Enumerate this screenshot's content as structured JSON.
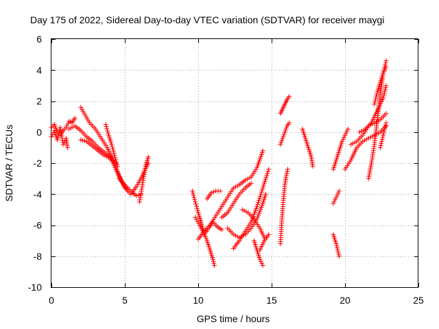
{
  "chart_data": {
    "type": "scatter",
    "title": "Day 175 of 2022, Sidereal Day-to-day VTEC variation (SDTVAR) for receiver maygi",
    "xlabel": "GPS time / hours",
    "ylabel": "SDTVAR / TECUs",
    "xlim": [
      0,
      25
    ],
    "ylim": [
      -10,
      6
    ],
    "xticks": [
      0,
      5,
      10,
      15,
      20,
      25
    ],
    "yticks": [
      6,
      4,
      2,
      0,
      -2,
      -4,
      -6,
      -8,
      -10
    ],
    "grid": true,
    "marker": "+",
    "color": "#ff0000",
    "series": [
      {
        "name": "s1",
        "x": [
          0.0,
          0.2,
          0.4,
          0.6,
          0.8,
          1.0,
          1.1
        ],
        "y": [
          -0.3,
          0.1,
          -0.5,
          0.3,
          -0.8,
          -0.4,
          -1.0
        ]
      },
      {
        "name": "s2",
        "x": [
          0.0,
          0.2,
          0.4,
          0.6,
          0.8,
          1.0,
          1.2,
          1.4,
          1.6
        ],
        "y": [
          0.3,
          0.5,
          0.0,
          -0.2,
          0.1,
          0.3,
          0.7,
          0.6,
          0.9
        ]
      },
      {
        "name": "s3",
        "x": [
          1.2,
          1.6,
          2.0,
          2.4,
          2.8,
          3.2,
          3.6,
          4.0,
          4.4,
          4.8,
          5.2
        ],
        "y": [
          0.2,
          0.4,
          0.1,
          -0.3,
          -0.6,
          -1.0,
          -1.3,
          -1.6,
          -2.4,
          -3.2,
          -3.8
        ]
      },
      {
        "name": "s4",
        "x": [
          2.0,
          2.3,
          2.6,
          3.0,
          3.4,
          3.8,
          4.2,
          4.6,
          5.0,
          5.4,
          5.8,
          6.2,
          6.6
        ],
        "y": [
          1.6,
          1.1,
          0.6,
          0.2,
          -0.4,
          -1.0,
          -1.8,
          -2.8,
          -3.6,
          -4.0,
          -3.5,
          -2.8,
          -2.0
        ]
      },
      {
        "name": "s5",
        "x": [
          2.0,
          2.4,
          2.8,
          3.2,
          3.6,
          4.0,
          4.4
        ],
        "y": [
          -0.5,
          -0.6,
          -0.9,
          -1.2,
          -1.5,
          -1.7,
          -2.0
        ]
      },
      {
        "name": "s6",
        "x": [
          3.7,
          3.9,
          4.1,
          4.3,
          4.5
        ],
        "y": [
          0.5,
          -0.2,
          -0.8,
          -1.5,
          -2.2
        ]
      },
      {
        "name": "s7",
        "x": [
          4.6,
          4.9,
          5.2,
          5.5,
          5.8,
          6.1
        ],
        "y": [
          -3.0,
          -3.3,
          -3.6,
          -3.9,
          -4.1,
          -4.0
        ]
      },
      {
        "name": "s8",
        "x": [
          6.0,
          6.2,
          6.4,
          6.6
        ],
        "y": [
          -4.5,
          -3.4,
          -2.2,
          -1.6
        ]
      },
      {
        "name": "s9",
        "x": [
          9.6,
          9.8,
          10.0,
          10.2,
          10.4,
          10.6,
          10.8,
          11.0,
          11.1
        ],
        "y": [
          -3.8,
          -4.5,
          -5.2,
          -5.8,
          -6.5,
          -7.0,
          -7.6,
          -8.2,
          -8.6
        ]
      },
      {
        "name": "s10",
        "x": [
          9.8,
          10.1,
          10.4,
          10.7,
          11.0,
          11.3,
          11.6
        ],
        "y": [
          -5.5,
          -6.0,
          -6.6,
          -6.2,
          -5.8,
          -6.1,
          -6.3
        ]
      },
      {
        "name": "s11",
        "x": [
          10.0,
          10.4,
          10.8,
          11.2,
          11.6,
          12.0,
          12.4,
          12.8,
          13.2,
          13.6,
          14.0,
          14.4
        ],
        "y": [
          -6.9,
          -6.4,
          -6.0,
          -5.4,
          -4.8,
          -4.2,
          -3.6,
          -3.4,
          -3.1,
          -2.9,
          -2.3,
          -1.2
        ]
      },
      {
        "name": "s12",
        "x": [
          10.6,
          10.9,
          11.2,
          11.5
        ],
        "y": [
          -4.3,
          -3.9,
          -3.8,
          -3.8
        ]
      },
      {
        "name": "s13",
        "x": [
          11.6,
          12.0,
          12.4,
          12.8,
          13.2,
          13.6
        ],
        "y": [
          -5.5,
          -5.2,
          -4.6,
          -4.0,
          -3.6,
          -3.3
        ]
      },
      {
        "name": "s14",
        "x": [
          12.0,
          12.4,
          12.8,
          13.2,
          13.6,
          14.0,
          14.4,
          14.6
        ],
        "y": [
          -6.2,
          -6.6,
          -6.8,
          -6.6,
          -6.2,
          -5.6,
          -4.6,
          -4.0
        ]
      },
      {
        "name": "s15",
        "x": [
          12.4,
          12.8,
          13.2,
          13.6,
          14.0,
          14.4,
          14.8
        ],
        "y": [
          -7.5,
          -7.0,
          -6.4,
          -5.8,
          -4.8,
          -3.6,
          -2.4
        ]
      },
      {
        "name": "s16",
        "x": [
          13.0,
          13.4,
          13.8,
          14.2,
          14.5
        ],
        "y": [
          -5.0,
          -5.2,
          -5.6,
          -6.2,
          -6.8
        ]
      },
      {
        "name": "s17",
        "x": [
          13.8,
          14.0,
          14.2,
          14.4
        ],
        "y": [
          -7.0,
          -7.6,
          -8.2,
          -8.6
        ]
      },
      {
        "name": "s18",
        "x": [
          14.2,
          14.5,
          14.8
        ],
        "y": [
          -7.6,
          -7.0,
          -6.6
        ]
      },
      {
        "name": "s19",
        "x": [
          15.6,
          15.75,
          15.9,
          16.05,
          16.2
        ],
        "y": [
          1.2,
          1.5,
          1.8,
          2.1,
          2.3
        ]
      },
      {
        "name": "s20",
        "x": [
          15.6,
          15.75,
          15.9,
          16.05,
          16.2
        ],
        "y": [
          -0.8,
          -0.4,
          0.0,
          0.4,
          0.6
        ]
      },
      {
        "name": "s21",
        "x": [
          15.6,
          15.7,
          15.8,
          15.9,
          16.0,
          16.1
        ],
        "y": [
          -7.2,
          -5.6,
          -4.4,
          -3.4,
          -2.8,
          -2.4
        ]
      },
      {
        "name": "s22",
        "x": [
          17.1,
          17.3,
          17.5,
          17.7,
          17.8
        ],
        "y": [
          0.2,
          -0.4,
          -1.0,
          -1.6,
          -2.2
        ]
      },
      {
        "name": "s23",
        "x": [
          19.2,
          19.4,
          19.6,
          19.8,
          20.0,
          20.2
        ],
        "y": [
          -2.4,
          -1.8,
          -1.2,
          -0.6,
          -0.2,
          0.2
        ]
      },
      {
        "name": "s24",
        "x": [
          19.2,
          19.4,
          19.6
        ],
        "y": [
          -4.6,
          -4.2,
          -3.8
        ]
      },
      {
        "name": "s25",
        "x": [
          19.2,
          19.4,
          19.6
        ],
        "y": [
          -6.6,
          -7.2,
          -8.0
        ]
      },
      {
        "name": "s26",
        "x": [
          20.0,
          20.4,
          20.8,
          21.2,
          21.6,
          22.0,
          22.4,
          22.8
        ],
        "y": [
          -2.4,
          -1.8,
          -1.0,
          -0.6,
          -0.4,
          -0.2,
          0.0,
          0.4
        ]
      },
      {
        "name": "s27",
        "x": [
          20.4,
          20.8,
          21.2,
          21.6,
          22.0,
          22.4,
          22.8
        ],
        "y": [
          -0.8,
          -0.6,
          -0.2,
          0.4,
          0.6,
          0.8,
          1.2
        ]
      },
      {
        "name": "s28",
        "x": [
          21.0,
          21.4,
          21.8,
          22.2,
          22.6,
          22.8
        ],
        "y": [
          0.0,
          0.2,
          0.6,
          1.4,
          2.2,
          3.0
        ]
      },
      {
        "name": "s29",
        "x": [
          21.6,
          21.8,
          22.0,
          22.2,
          22.4,
          22.6,
          22.8
        ],
        "y": [
          -3.0,
          -2.0,
          -0.8,
          0.8,
          2.4,
          3.8,
          4.6
        ]
      },
      {
        "name": "s30",
        "x": [
          22.0,
          22.2,
          22.4,
          22.6,
          22.8
        ],
        "y": [
          1.8,
          2.6,
          3.2,
          3.8,
          4.2
        ]
      },
      {
        "name": "s31",
        "x": [
          22.4,
          22.6,
          22.8
        ],
        "y": [
          -1.0,
          -0.2,
          0.6
        ]
      }
    ]
  }
}
